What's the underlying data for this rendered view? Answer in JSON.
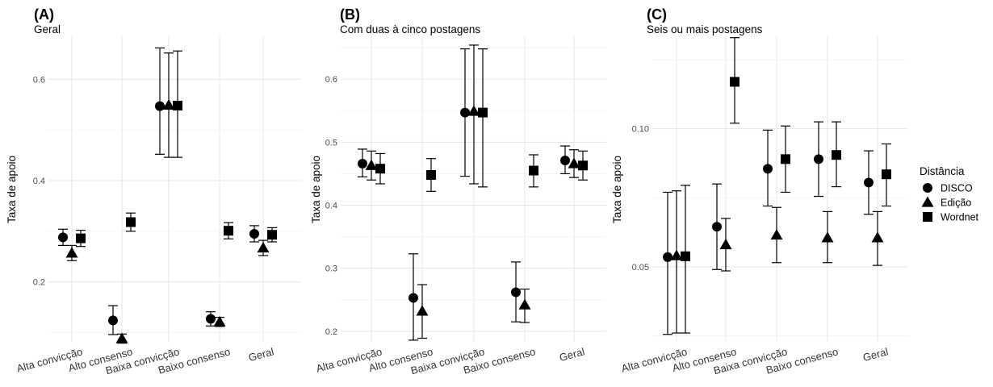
{
  "legend": {
    "title": "Distância",
    "entries": [
      {
        "name": "DISCO",
        "shape": "circle"
      },
      {
        "name": "Edição",
        "shape": "triangle"
      },
      {
        "name": "Wordnet",
        "shape": "square"
      }
    ]
  },
  "chart_data": [
    {
      "type": "scatter",
      "tag": "(A)",
      "title": "Geral",
      "ylabel": "Taxa de apoio",
      "xlabel": "",
      "categories": [
        "Alta convicção",
        "Alto consenso",
        "Baixa convicção",
        "Baixo consenso",
        "Geral"
      ],
      "ylim": [
        0.08,
        0.685
      ],
      "yticks": [
        0.2,
        0.4,
        0.6
      ],
      "ytick_labels": [
        "0.2",
        "0.4",
        "0.6"
      ],
      "grid": true,
      "series": [
        {
          "name": "DISCO",
          "values": [
            0.288,
            0.124,
            0.547,
            0.127,
            0.295
          ],
          "lower": [
            0.272,
            0.096,
            0.452,
            0.113,
            0.279
          ],
          "upper": [
            0.304,
            0.153,
            0.662,
            0.141,
            0.311
          ]
        },
        {
          "name": "Edição",
          "values": [
            0.257,
            0.088,
            0.549,
            0.121,
            0.267
          ],
          "lower": [
            0.242,
            0.079,
            0.446,
            0.112,
            0.252
          ],
          "upper": [
            0.272,
            0.097,
            0.652,
            0.13,
            0.282
          ]
        },
        {
          "name": "Wordnet",
          "values": [
            0.286,
            0.318,
            0.548,
            0.301,
            0.293
          ],
          "lower": [
            0.27,
            0.3,
            0.446,
            0.285,
            0.279
          ],
          "upper": [
            0.302,
            0.336,
            0.656,
            0.317,
            0.307
          ]
        }
      ]
    },
    {
      "type": "scatter",
      "tag": "(B)",
      "title": "Com duas à cinco postagens",
      "ylabel": "Taxa de apoio",
      "xlabel": "",
      "categories": [
        "Alta convicção",
        "Alto consenso",
        "Baixa convicção",
        "Baixo consenso",
        "Geral"
      ],
      "ylim": [
        0.182,
        0.668
      ],
      "yticks": [
        0.2,
        0.3,
        0.4,
        0.5,
        0.6
      ],
      "ytick_labels": [
        "0.2",
        "0.3",
        "0.4",
        "0.5",
        "0.6"
      ],
      "grid": true,
      "series": [
        {
          "name": "DISCO",
          "values": [
            0.466,
            0.253,
            0.547,
            0.262,
            0.471
          ],
          "lower": [
            0.445,
            0.186,
            0.446,
            0.215,
            0.45
          ],
          "upper": [
            0.489,
            0.323,
            0.648,
            0.31,
            0.494
          ]
        },
        {
          "name": "Edição",
          "values": [
            0.463,
            0.232,
            0.549,
            0.242,
            0.466
          ],
          "lower": [
            0.44,
            0.189,
            0.434,
            0.214,
            0.444
          ],
          "upper": [
            0.486,
            0.274,
            0.654,
            0.267,
            0.488
          ]
        },
        {
          "name": "Wordnet",
          "values": [
            0.458,
            0.448,
            0.547,
            0.455,
            0.463
          ],
          "lower": [
            0.434,
            0.422,
            0.429,
            0.429,
            0.44
          ],
          "upper": [
            0.482,
            0.474,
            0.648,
            0.48,
            0.486
          ]
        }
      ]
    },
    {
      "type": "scatter",
      "tag": "(C)",
      "title": "Seis ou mais postagens",
      "ylabel": "Taxa de apoio",
      "xlabel": "",
      "categories": [
        "Alta convicção",
        "Alto consenso",
        "Baixa convicção",
        "Baixo consenso",
        "Geral"
      ],
      "ylim": [
        0.0225,
        0.1335
      ],
      "yticks": [
        0.05,
        0.1
      ],
      "ytick_labels": [
        "0.05",
        "0.10"
      ],
      "grid": true,
      "series": [
        {
          "name": "DISCO",
          "values": [
            0.0535,
            0.0645,
            0.0855,
            0.089,
            0.0805
          ],
          "lower": [
            0.0255,
            0.049,
            0.072,
            0.0755,
            0.069
          ],
          "upper": [
            0.077,
            0.08,
            0.0995,
            0.1025,
            0.092
          ]
        },
        {
          "name": "Edição",
          "values": [
            0.054,
            0.058,
            0.0615,
            0.0605,
            0.0605
          ],
          "lower": [
            0.026,
            0.0485,
            0.0515,
            0.0515,
            0.0505
          ],
          "upper": [
            0.0775,
            0.0675,
            0.0715,
            0.07,
            0.07
          ]
        },
        {
          "name": "Wordnet",
          "values": [
            0.0538,
            0.117,
            0.089,
            0.0905,
            0.0835
          ],
          "lower": [
            0.026,
            0.102,
            0.077,
            0.079,
            0.072
          ],
          "upper": [
            0.0795,
            0.133,
            0.101,
            0.1025,
            0.0945
          ]
        }
      ]
    }
  ]
}
